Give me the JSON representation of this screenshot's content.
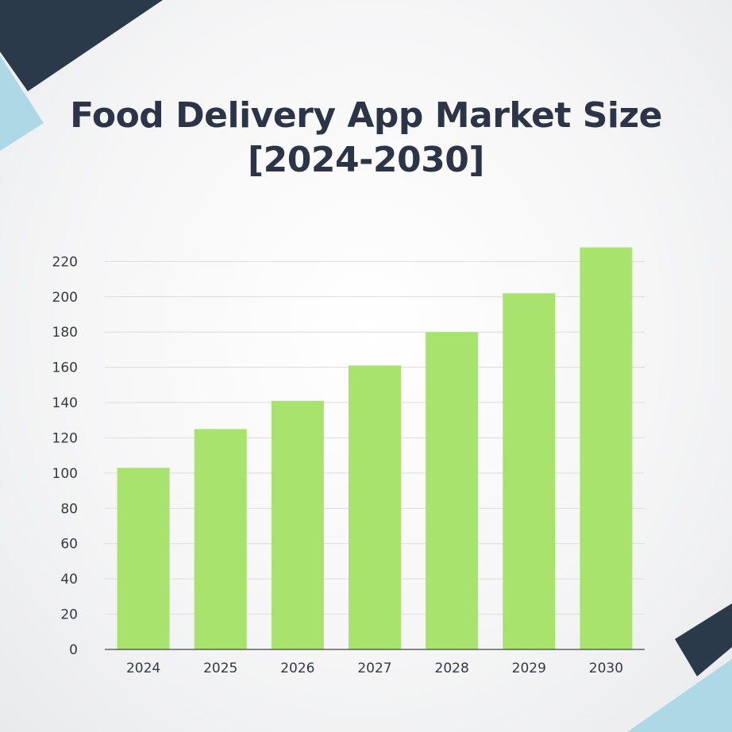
{
  "title_line1": "Food Delivery App Market Size",
  "title_line2": "[2024-2030]",
  "colors": {
    "bar": "#a8e36d",
    "text": "#2b3547",
    "grid": "#dcdcdc",
    "shape_dark": "#2b3a4b",
    "shape_light": "#add8e6"
  },
  "chart_data": {
    "type": "bar",
    "title": "Food Delivery App Market Size [2024-2030]",
    "categories": [
      "2024",
      "2025",
      "2026",
      "2027",
      "2028",
      "2029",
      "2030"
    ],
    "values": [
      103,
      125,
      141,
      161,
      180,
      202,
      228
    ],
    "ylim": [
      0,
      230
    ],
    "yticks": [
      0,
      20,
      40,
      60,
      80,
      100,
      120,
      140,
      160,
      180,
      200,
      220
    ],
    "grid": true,
    "legend": "none"
  }
}
